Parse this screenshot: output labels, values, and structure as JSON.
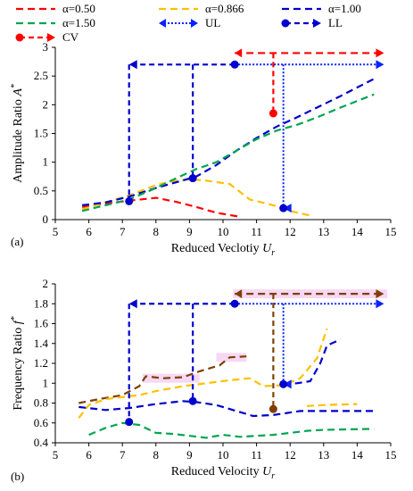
{
  "colors": {
    "red": "#ff0000",
    "orange": "#ffc000",
    "blue": "#0000cc",
    "green": "#00a550",
    "brown": "#7f3f00",
    "ul_blue": "#0b22ff",
    "highlight": "#f4c7f0"
  },
  "legend": [
    {
      "label": "α=0.50",
      "color": "#ff0000",
      "kind": "dash"
    },
    {
      "label": "α=0.866",
      "color": "#ffc000",
      "kind": "dash"
    },
    {
      "label": "α=1.00",
      "color": "#0000cc",
      "kind": "dash"
    },
    {
      "label": "α=1.50",
      "color": "#00a550",
      "kind": "dash"
    },
    {
      "label": "UL",
      "color": "#0b22ff",
      "kind": "dotarrow"
    },
    {
      "label": "LL",
      "color": "#0000cc",
      "kind": "dotmarker"
    },
    {
      "label": "CV",
      "color": "#ff0000",
      "kind": "dashmarker"
    }
  ],
  "chart_data": [
    {
      "type": "line",
      "panel_label": "(a)",
      "xlabel": "Reduced Veclotiy",
      "xlabel_var": "U",
      "xlabel_sub": "r",
      "ylabel": "Amplitude Ratio",
      "ylabel_var": "A",
      "ylabel_sup": "*",
      "xlim": [
        5,
        15
      ],
      "ylim": [
        0,
        3
      ],
      "xticks": [
        "5",
        "6",
        "7",
        "8",
        "9",
        "10",
        "11",
        "12",
        "13",
        "14",
        "15"
      ],
      "yticks": [
        "0",
        "0.5",
        "1",
        "1.5",
        "2",
        "2.5",
        "3"
      ],
      "series": [
        {
          "name": "α=0.50",
          "color": "#ff0000",
          "points": [
            [
              5.8,
              0.22
            ],
            [
              6.5,
              0.28
            ],
            [
              7.2,
              0.33
            ],
            [
              8.0,
              0.38
            ],
            [
              8.6,
              0.31
            ],
            [
              9.2,
              0.22
            ],
            [
              9.8,
              0.12
            ],
            [
              10.5,
              0.05
            ]
          ]
        },
        {
          "name": "α=0.866",
          "color": "#ffc000",
          "points": [
            [
              5.8,
              0.18
            ],
            [
              6.5,
              0.3
            ],
            [
              7.2,
              0.42
            ],
            [
              8.0,
              0.6
            ],
            [
              8.5,
              0.67
            ],
            [
              9.0,
              0.7
            ],
            [
              9.5,
              0.68
            ],
            [
              10.2,
              0.62
            ],
            [
              10.8,
              0.35
            ],
            [
              11.5,
              0.25
            ],
            [
              12.0,
              0.15
            ],
            [
              12.6,
              0.07
            ]
          ]
        },
        {
          "name": "α=1.00",
          "color": "#0000cc",
          "points": [
            [
              5.8,
              0.25
            ],
            [
              6.5,
              0.3
            ],
            [
              7.2,
              0.4
            ],
            [
              8.0,
              0.55
            ],
            [
              8.6,
              0.65
            ],
            [
              9.2,
              0.75
            ],
            [
              9.8,
              0.95
            ],
            [
              10.4,
              1.2
            ],
            [
              11.0,
              1.42
            ],
            [
              11.6,
              1.62
            ],
            [
              12.2,
              1.78
            ],
            [
              12.8,
              1.95
            ],
            [
              13.5,
              2.15
            ],
            [
              14.0,
              2.3
            ],
            [
              14.5,
              2.45
            ]
          ]
        },
        {
          "name": "α=1.50",
          "color": "#00a550",
          "points": [
            [
              5.8,
              0.15
            ],
            [
              6.5,
              0.25
            ],
            [
              7.2,
              0.35
            ],
            [
              8.0,
              0.55
            ],
            [
              8.6,
              0.72
            ],
            [
              9.2,
              0.88
            ],
            [
              9.8,
              1.0
            ],
            [
              10.4,
              1.2
            ],
            [
              11.0,
              1.4
            ],
            [
              11.6,
              1.55
            ],
            [
              12.2,
              1.65
            ],
            [
              12.8,
              1.78
            ],
            [
              13.5,
              1.95
            ],
            [
              14.5,
              2.18
            ]
          ]
        }
      ],
      "markers": {
        "ul": {
          "x": 10.35,
          "y": 2.7,
          "x_end": 14.8,
          "drop_x": 11.8,
          "drop_y": 0.2
        },
        "ll": {
          "x": 10.35,
          "y": 2.7,
          "x_end": 7.2,
          "drop_x1": 7.2,
          "drop_y1": 0.32,
          "drop_x2": 9.1,
          "drop_y2": 0.72
        },
        "cv": {
          "x": 11.5,
          "y": 1.85,
          "top_y": 2.9,
          "x_start": 10.35,
          "x_end": 14.8
        }
      }
    },
    {
      "type": "line",
      "panel_label": "(b)",
      "xlabel": "Reduced Velocity",
      "xlabel_var": "U",
      "xlabel_sub": "r",
      "ylabel": "Frequency Ratio",
      "ylabel_var": "f",
      "ylabel_sup": "*",
      "xlim": [
        5,
        15
      ],
      "ylim": [
        0.4,
        2
      ],
      "xticks": [
        "5",
        "6",
        "7",
        "8",
        "9",
        "10",
        "11",
        "12",
        "13",
        "14",
        "15"
      ],
      "yticks": [
        "0.4",
        "0.6",
        "0.8",
        "1",
        "1.2",
        "1.4",
        "1.6",
        "1.8",
        "2"
      ],
      "series": [
        {
          "name": "α=0.50",
          "color": "#7f3f00",
          "points": [
            [
              5.7,
              0.8
            ],
            [
              6.3,
              0.84
            ],
            [
              7.0,
              0.88
            ],
            [
              7.5,
              0.97
            ],
            [
              7.7,
              1.07
            ],
            [
              8.2,
              1.05
            ],
            [
              8.8,
              1.06
            ],
            [
              9.3,
              1.12
            ],
            [
              9.9,
              1.18
            ],
            [
              10.2,
              1.26
            ],
            [
              10.7,
              1.27
            ]
          ]
        },
        {
          "name": "α=0.866",
          "color": "#ffc000",
          "points": [
            [
              5.7,
              0.65
            ],
            [
              6.0,
              0.78
            ],
            [
              6.5,
              0.84
            ],
            [
              7.0,
              0.86
            ],
            [
              7.5,
              0.88
            ],
            [
              8.0,
              0.92
            ],
            [
              8.8,
              0.97
            ],
            [
              9.5,
              1.0
            ],
            [
              10.2,
              1.03
            ],
            [
              10.8,
              1.05
            ],
            [
              11.2,
              0.97
            ],
            [
              11.8,
              0.98
            ],
            [
              12.3,
              1.05
            ],
            [
              12.8,
              1.25
            ],
            [
              13.1,
              1.55
            ],
            [
              12.5,
              0.77
            ],
            [
              13.0,
              0.78
            ],
            [
              14.0,
              0.79
            ]
          ]
        },
        {
          "name": "α=1.00",
          "color": "#0000cc",
          "points": [
            [
              5.7,
              0.76
            ],
            [
              6.5,
              0.73
            ],
            [
              7.2,
              0.75
            ],
            [
              8.0,
              0.79
            ],
            [
              8.8,
              0.82
            ],
            [
              9.2,
              0.81
            ],
            [
              9.8,
              0.78
            ],
            [
              10.4,
              0.72
            ],
            [
              10.9,
              0.67
            ],
            [
              11.5,
              0.68
            ],
            [
              12.3,
              0.72
            ],
            [
              13.0,
              0.72
            ],
            [
              14.5,
              0.72
            ]
          ]
        },
        {
          "name": "α=1.50",
          "color": "#00a550",
          "points": [
            [
              6.0,
              0.48
            ],
            [
              6.5,
              0.55
            ],
            [
              7.0,
              0.6
            ],
            [
              7.5,
              0.58
            ],
            [
              8.0,
              0.5
            ],
            [
              8.5,
              0.49
            ],
            [
              9.0,
              0.47
            ],
            [
              9.5,
              0.45
            ],
            [
              10.0,
              0.48
            ],
            [
              10.5,
              0.46
            ],
            [
              11.0,
              0.47
            ],
            [
              11.5,
              0.48
            ],
            [
              12.0,
              0.5
            ],
            [
              12.5,
              0.52
            ],
            [
              13.0,
              0.53
            ],
            [
              14.5,
              0.54
            ]
          ]
        }
      ],
      "extra_series": [
        {
          "name": "UL-branch",
          "color": "#0000cc",
          "points": [
            [
              11.8,
              0.99
            ],
            [
              12.2,
              1.0
            ],
            [
              12.6,
              1.02
            ],
            [
              12.9,
              1.2
            ],
            [
              13.1,
              1.38
            ],
            [
              13.5,
              1.44
            ]
          ]
        }
      ],
      "markers": {
        "ul": {
          "x": 10.35,
          "y": 1.8,
          "x_end": 14.8,
          "drop_x": 11.8,
          "drop_y": 0.99
        },
        "ll": {
          "x": 10.35,
          "y": 1.8,
          "x_end": 7.2,
          "drop_x1": 7.2,
          "drop_y1": 0.61,
          "drop_x2": 9.1,
          "drop_y2": 0.82
        },
        "cv": {
          "x": 11.5,
          "y": 0.74,
          "top_y": 1.9,
          "x_start": 10.35,
          "x_end": 14.8
        }
      }
    }
  ]
}
